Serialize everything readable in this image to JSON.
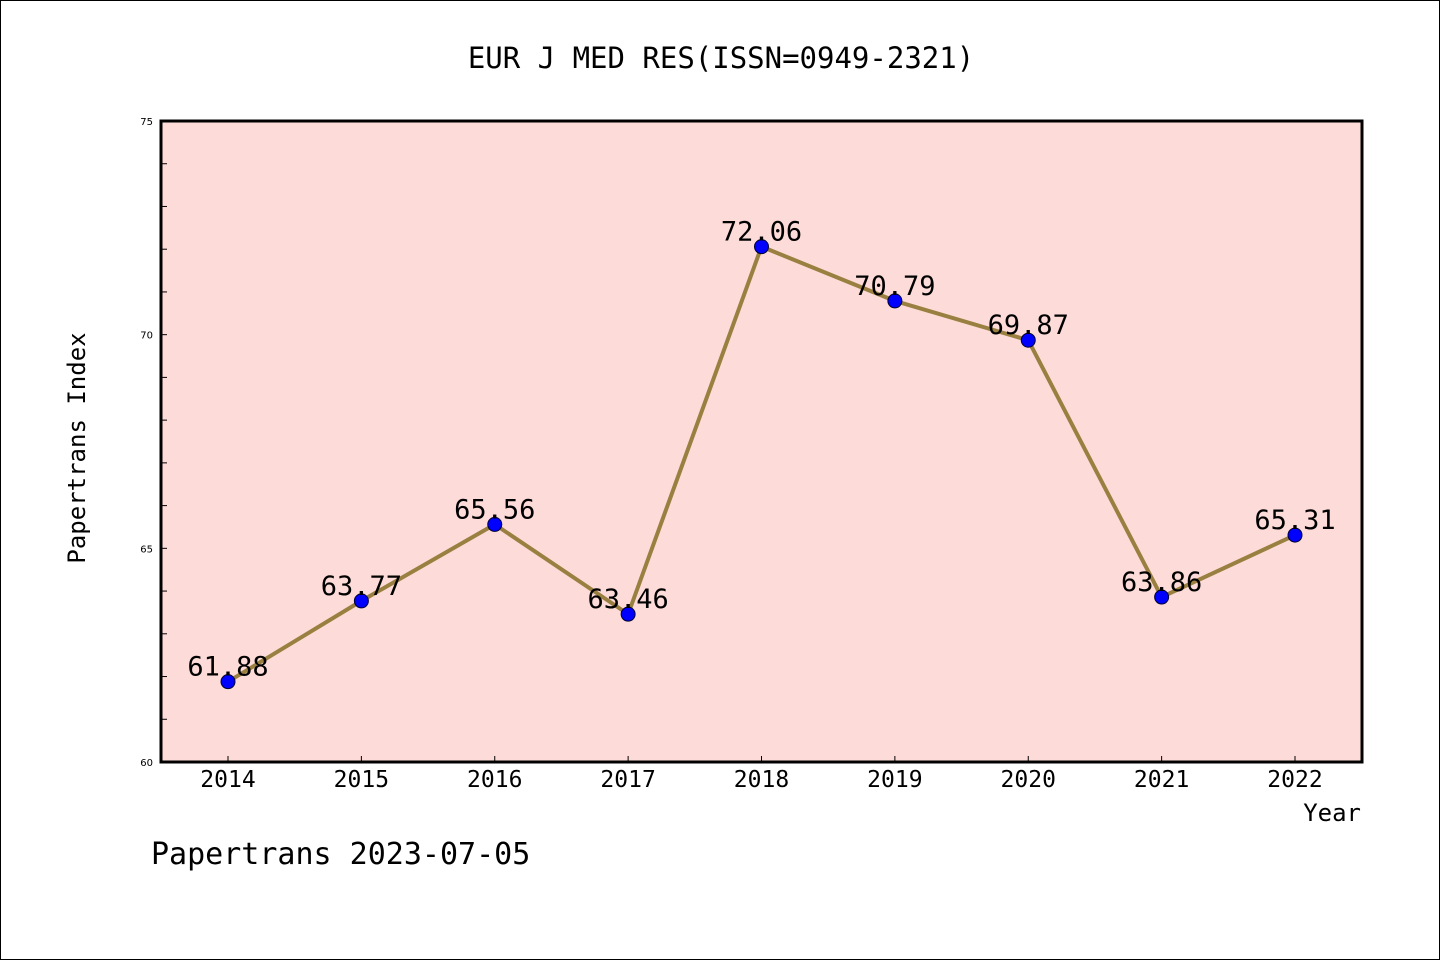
{
  "chart_data": {
    "type": "line",
    "title": "EUR J MED RES(ISSN=0949-2321)",
    "xlabel": "Year",
    "ylabel": "Papertrans Index",
    "categories": [
      "2014",
      "2015",
      "2016",
      "2017",
      "2018",
      "2019",
      "2020",
      "2021",
      "2022"
    ],
    "values": [
      61.88,
      63.77,
      65.56,
      63.46,
      72.06,
      70.79,
      69.87,
      63.86,
      65.31
    ],
    "data_labels": [
      "61.88",
      "63.77",
      "65.56",
      "63.46",
      "72.06",
      "70.79",
      "69.87",
      "63.86",
      "65.31"
    ],
    "ylim": [
      60,
      75
    ],
    "yticks": [
      "60",
      "65",
      "70",
      "75"
    ],
    "grid": false,
    "legend": "none",
    "colors": {
      "plot_background": "#fddbd8",
      "line": "#9a8040",
      "marker": "#0000ff",
      "axes": "#000000"
    }
  },
  "footer": {
    "watermark": "Papertrans 2023-07-05"
  }
}
